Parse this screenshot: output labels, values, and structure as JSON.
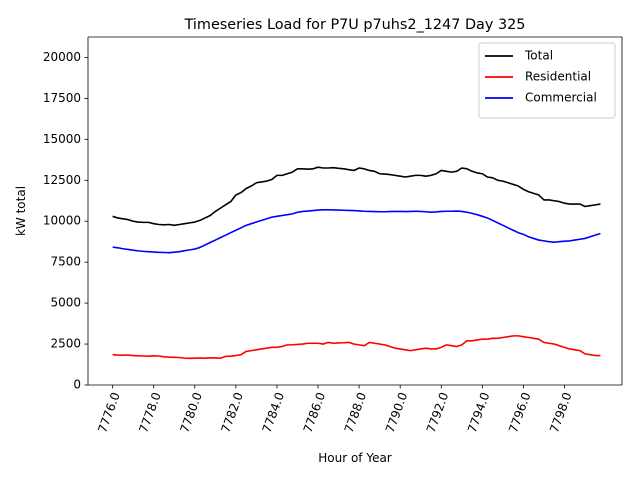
{
  "chart_data": {
    "type": "line",
    "title": "Timeseries Load for P7U p7uhs2_1247  Day 325",
    "xlabel": "Hour of Year",
    "ylabel": "kW total",
    "xlim": [
      7774.8,
      7800.8
    ],
    "ylim": [
      0,
      21250
    ],
    "xticks": [
      7776,
      7778,
      7780,
      7782,
      7784,
      7786,
      7788,
      7790,
      7792,
      7794,
      7796,
      7798
    ],
    "xtick_labels": [
      "7776.0",
      "7778.0",
      "7780.0",
      "7782.0",
      "7784.0",
      "7786.0",
      "7788.0",
      "7790.0",
      "7792.0",
      "7794.0",
      "7796.0",
      "7798.0"
    ],
    "yticks": [
      0,
      2500,
      5000,
      7500,
      10000,
      12500,
      15000,
      17500,
      20000
    ],
    "ytick_labels": [
      "0",
      "2500",
      "5000",
      "7500",
      "10000",
      "12500",
      "15000",
      "17500",
      "20000"
    ],
    "grid": false,
    "legend_position": "top-right",
    "x_start": 7776,
    "x_step": 0.25,
    "series": [
      {
        "name": "Total",
        "color": "#000000",
        "values": [
          10300,
          10200,
          10150,
          10100,
          10000,
          9950,
          9930,
          9930,
          9850,
          9800,
          9780,
          9800,
          9750,
          9800,
          9850,
          9900,
          9950,
          10050,
          10200,
          10350,
          10600,
          10800,
          11000,
          11200,
          11600,
          11750,
          12000,
          12150,
          12350,
          12400,
          12450,
          12550,
          12800,
          12800,
          12900,
          13000,
          13200,
          13200,
          13180,
          13200,
          13300,
          13250,
          13250,
          13270,
          13230,
          13200,
          13150,
          13100,
          13250,
          13200,
          13100,
          13050,
          12900,
          12880,
          12850,
          12800,
          12750,
          12700,
          12750,
          12800,
          12800,
          12750,
          12800,
          12900,
          13100,
          13050,
          13000,
          13050,
          13250,
          13200,
          13050,
          12950,
          12900,
          12700,
          12650,
          12500,
          12450,
          12350,
          12250,
          12150,
          11950,
          11800,
          11700,
          11600,
          11300,
          11300,
          11250,
          11200,
          11100,
          11050,
          11050,
          11050,
          10900,
          10950,
          11000,
          11050
        ]
      },
      {
        "name": "Residential",
        "color": "#ff0000",
        "values": [
          1850,
          1830,
          1820,
          1830,
          1800,
          1780,
          1770,
          1760,
          1780,
          1770,
          1720,
          1700,
          1690,
          1680,
          1640,
          1630,
          1640,
          1650,
          1640,
          1660,
          1650,
          1640,
          1750,
          1760,
          1800,
          1850,
          2050,
          2100,
          2150,
          2200,
          2250,
          2300,
          2300,
          2350,
          2450,
          2450,
          2480,
          2500,
          2550,
          2550,
          2550,
          2500,
          2600,
          2550,
          2570,
          2580,
          2600,
          2500,
          2450,
          2400,
          2600,
          2550,
          2500,
          2450,
          2350,
          2250,
          2200,
          2150,
          2100,
          2150,
          2200,
          2250,
          2200,
          2200,
          2300,
          2450,
          2400,
          2350,
          2450,
          2700,
          2700,
          2750,
          2800,
          2800,
          2850,
          2850,
          2900,
          2950,
          3000,
          3000,
          2950,
          2900,
          2850,
          2800,
          2600,
          2550,
          2500,
          2400,
          2300,
          2200,
          2150,
          2100,
          1900,
          1850,
          1800,
          1800
        ]
      },
      {
        "name": "Commercial",
        "color": "#0000ff",
        "values": [
          8420,
          8380,
          8320,
          8280,
          8230,
          8190,
          8160,
          8140,
          8120,
          8100,
          8090,
          8080,
          8110,
          8140,
          8200,
          8250,
          8300,
          8400,
          8550,
          8700,
          8850,
          9000,
          9150,
          9300,
          9450,
          9600,
          9750,
          9850,
          9950,
          10050,
          10150,
          10250,
          10300,
          10350,
          10400,
          10450,
          10550,
          10600,
          10620,
          10650,
          10680,
          10700,
          10700,
          10690,
          10680,
          10670,
          10660,
          10650,
          10630,
          10610,
          10600,
          10590,
          10580,
          10580,
          10590,
          10600,
          10600,
          10590,
          10600,
          10610,
          10600,
          10580,
          10550,
          10570,
          10600,
          10610,
          10610,
          10620,
          10600,
          10550,
          10480,
          10400,
          10300,
          10200,
          10050,
          9900,
          9750,
          9600,
          9450,
          9300,
          9200,
          9050,
          8950,
          8850,
          8800,
          8750,
          8720,
          8750,
          8780,
          8800,
          8850,
          8900,
          8950,
          9050,
          9150,
          9250
        ]
      }
    ]
  }
}
